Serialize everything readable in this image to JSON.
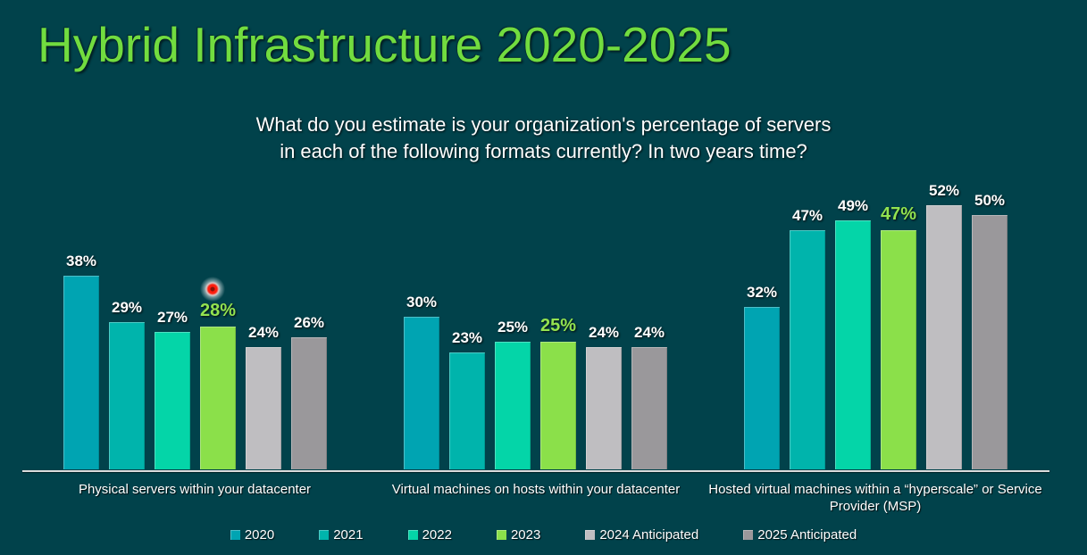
{
  "title": "Hybrid Infrastructure 2020-2025",
  "subtitle": [
    "What do you estimate is your organization's percentage of servers",
    "in each of the following formats currently? In two years time?"
  ],
  "chart_data": {
    "type": "bar",
    "title": "Hybrid Infrastructure 2020-2025",
    "subtitle": "What do you estimate is your organization's percentage of servers in each of the following formats currently? In two years time?",
    "categories": [
      "Physical servers within your datacenter",
      "Virtual machines on hosts within your datacenter",
      "Hosted virtual machines within a “hyperscale” or Service Provider (MSP)"
    ],
    "series": [
      {
        "name": "2020",
        "color": "#00A4B2",
        "values": [
          38,
          30,
          32
        ],
        "highlight": false
      },
      {
        "name": "2021",
        "color": "#00B4AC",
        "values": [
          29,
          23,
          47
        ],
        "highlight": false
      },
      {
        "name": "2022",
        "color": "#04D5A8",
        "values": [
          27,
          25,
          49
        ],
        "highlight": false
      },
      {
        "name": "2023",
        "color": "#8BE04A",
        "values": [
          28,
          25,
          47
        ],
        "highlight": true
      },
      {
        "name": "2024 Anticipated",
        "color": "#BFBEC1",
        "values": [
          24,
          24,
          52
        ],
        "highlight": false
      },
      {
        "name": "2025 Anticipated",
        "color": "#9A989B",
        "values": [
          26,
          24,
          50
        ],
        "highlight": false
      }
    ],
    "value_suffix": "%",
    "ylim": [
      0,
      55
    ],
    "grid": false,
    "legend_position": "bottom",
    "highlight_label_color": "#93E350"
  },
  "colors": {
    "background": "#01424B",
    "title_green": "#72DC3F",
    "text_white": "#FFFFFF",
    "axis_line": "#DCDCDC",
    "laser_dot_red": "#FF1E0E"
  }
}
